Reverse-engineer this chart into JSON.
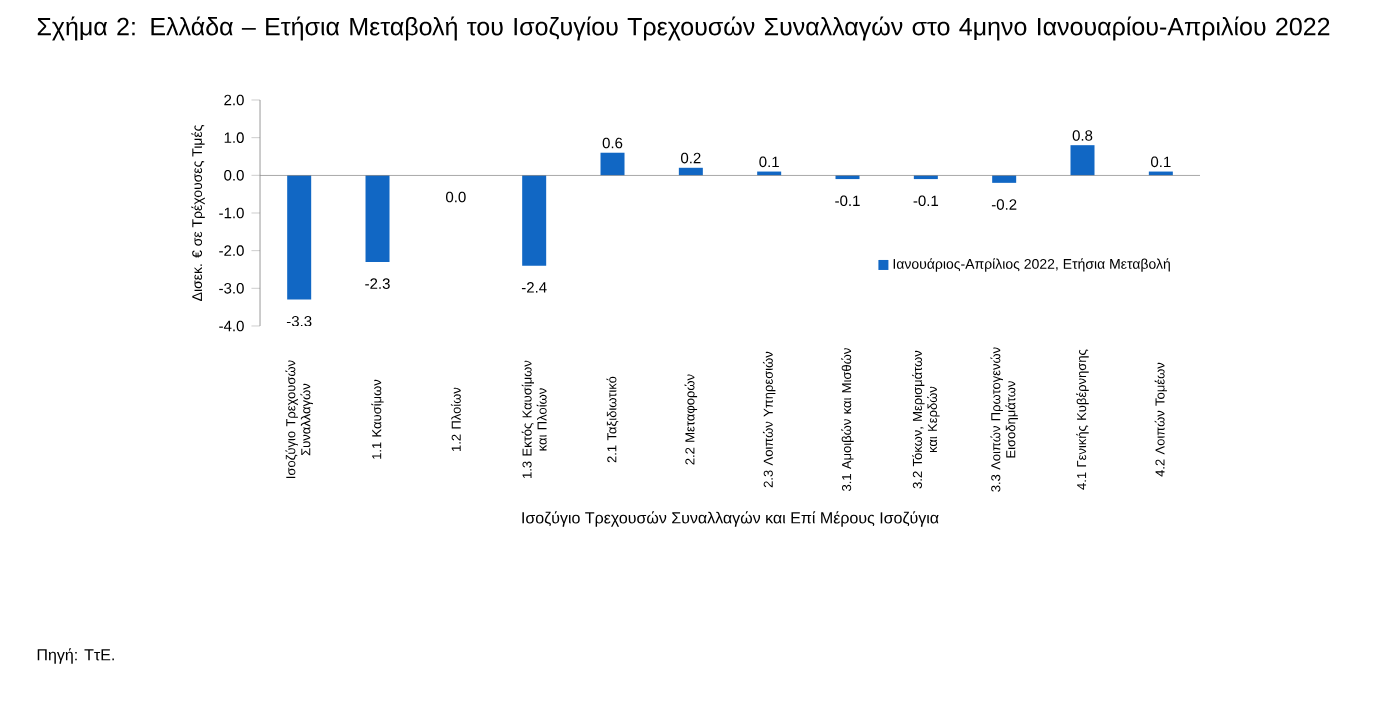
{
  "chart_data": {
    "type": "bar",
    "title": "Σχήμα 2: Ελλάδα – Ετήσια Μεταβολή του Ισοζυγίου Τρεχουσών Συναλλαγών στο 4μηνο Ιανουαρίου-Απριλίου 2022",
    "xlabel": "Ισοζύγιο Τρεχουσών Συναλλαγών και Επί Μέρους Ισοζύγια",
    "ylabel": "Δισεκ. € σε Τρέχουσες Τιμές",
    "annotations": [
      "Πηγή: ΤτΕ."
    ],
    "categories": [
      "Ισοζύγιο Τρεχουσών Συναλλαγών",
      "1.1 Καυσίμων",
      "1.2 Πλοίων",
      "1.3 Εκτός Καυσίμων και Πλοίων",
      "2.1 Ταξιδιωτικό",
      "2.2 Μεταφορών",
      "2.3 Λοιπών Υπηρεσιών",
      "3.1 Αμοιβών και Μισθών",
      "3.2 Τόκων, Μερισμάτων και Κερδών",
      "3.3 Λοιπών Πρωτογενών Εισοδημάτων",
      "4.1 Γενικής Κυβέρνησης",
      "4.2 Λοιπών Τομέων"
    ],
    "series": [
      {
        "name": "Ιανουάριος-Απρίλιος 2022, Ετήσια Μεταβολή",
        "color": "#1167c4",
        "values": [
          -3.3,
          -2.3,
          0.0,
          -2.4,
          0.6,
          0.2,
          0.1,
          -0.1,
          -0.1,
          -0.2,
          0.8,
          0.1
        ],
        "value_labels": [
          "-3.3",
          "-2.3",
          "0.0",
          "-2.4",
          "0.6",
          "0.2",
          "0.1",
          "-0.1",
          "-0.1",
          "-0.2",
          "0.8",
          "0.1"
        ]
      }
    ],
    "ylim": [
      -4,
      2
    ],
    "yticks": [
      {
        "value": -4,
        "label": "-4.0"
      },
      {
        "value": -3,
        "label": "-3.0"
      },
      {
        "value": -2,
        "label": "-2.0"
      },
      {
        "value": -1,
        "label": "-1.0"
      },
      {
        "value": 0,
        "label": "0.0"
      },
      {
        "value": 1,
        "label": "1.0"
      },
      {
        "value": 2,
        "label": "2.0"
      }
    ],
    "legend": "right"
  }
}
